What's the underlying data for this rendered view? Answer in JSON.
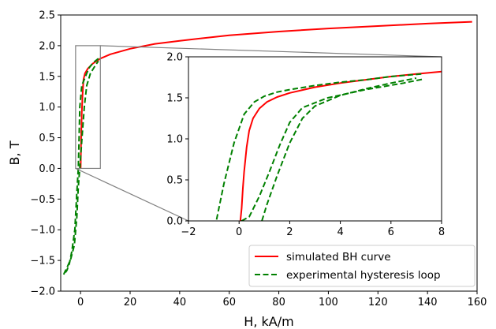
{
  "chart_data": [
    {
      "id": "main",
      "type": "line",
      "xlabel": "H, kA/m",
      "ylabel": "B, T",
      "xlim": [
        -8,
        160
      ],
      "ylim": [
        -2.0,
        2.5
      ],
      "xticks": [
        0,
        20,
        40,
        60,
        80,
        100,
        120,
        140,
        160
      ],
      "yticks": [
        -2.0,
        -1.5,
        -1.0,
        -0.5,
        0.0,
        0.5,
        1.0,
        1.5,
        2.0,
        2.5
      ],
      "grid": false,
      "legend_position": "lower-right",
      "series": [
        {
          "name": "simulated BH curve",
          "color": "#ff0000",
          "dash": "solid",
          "x": [
            0.05,
            0.25,
            0.5,
            0.8,
            1.2,
            1.8,
            3,
            5,
            8,
            12,
            20,
            30,
            40,
            60,
            80,
            100,
            120,
            140,
            158
          ],
          "y": [
            0.0,
            0.5,
            0.9,
            1.2,
            1.45,
            1.55,
            1.63,
            1.71,
            1.79,
            1.86,
            1.95,
            2.03,
            2.08,
            2.17,
            2.23,
            2.28,
            2.32,
            2.36,
            2.39
          ]
        },
        {
          "name": "experimental hysteresis loop",
          "color": "#008000",
          "dash": "dashed",
          "x": [
            7.2,
            5.0,
            3.5,
            2.5,
            1.5,
            0.5,
            -0.3,
            -0.6,
            -0.9,
            -1.5,
            -2.3,
            -3.5,
            -4.5,
            -5.5,
            -6.5,
            -6.8,
            -6.5,
            -5.5,
            -4.0,
            -2.5,
            -1.5,
            -0.9,
            -0.3,
            0.6,
            1.5,
            2.5,
            4.0,
            6.0,
            7.2
          ],
          "y": [
            1.79,
            1.72,
            1.64,
            1.55,
            1.45,
            1.35,
            1.0,
            0.5,
            0.0,
            -0.4,
            -1.0,
            -1.35,
            -1.55,
            -1.66,
            -1.72,
            -1.73,
            -1.7,
            -1.62,
            -1.48,
            -1.25,
            -0.8,
            -0.3,
            0.0,
            0.5,
            1.0,
            1.35,
            1.55,
            1.68,
            1.75
          ]
        }
      ]
    },
    {
      "id": "inset",
      "type": "line",
      "xlabel": "",
      "ylabel": "",
      "xlim": [
        -2,
        8
      ],
      "ylim": [
        0.0,
        2.0
      ],
      "xticks": [
        -2,
        0,
        2,
        4,
        6,
        8
      ],
      "yticks": [
        0.0,
        0.5,
        1.0,
        1.5,
        2.0
      ],
      "grid": false,
      "series": [
        {
          "name": "",
          "color": "#ff0000",
          "dash": "solid",
          "x": [
            0.05,
            0.1,
            0.15,
            0.2,
            0.3,
            0.4,
            0.55,
            0.8,
            1.1,
            1.5,
            2.0,
            3.0,
            4.0,
            5.0,
            6.0,
            7.0,
            8.0
          ],
          "y": [
            0.0,
            0.15,
            0.4,
            0.6,
            0.9,
            1.1,
            1.25,
            1.37,
            1.45,
            1.51,
            1.56,
            1.63,
            1.68,
            1.72,
            1.76,
            1.79,
            1.82
          ]
        },
        {
          "name": "",
          "color": "#008000",
          "dash": "dashed",
          "x": [
            7.2,
            6.0,
            5.0,
            4.0,
            3.0,
            2.0,
            1.5,
            1.0,
            0.6,
            0.2,
            -0.2,
            -0.6,
            -0.9
          ],
          "y": [
            1.79,
            1.76,
            1.72,
            1.69,
            1.65,
            1.6,
            1.57,
            1.52,
            1.45,
            1.3,
            0.95,
            0.45,
            0.0
          ]
        },
        {
          "name": "",
          "color": "#008000",
          "dash": "dashed",
          "x": [
            0.9,
            1.1,
            1.5,
            2.0,
            2.5,
            3.0,
            4.0,
            5.0,
            6.0,
            7.0
          ],
          "y": [
            0.0,
            0.2,
            0.55,
            0.95,
            1.25,
            1.4,
            1.53,
            1.61,
            1.68,
            1.74
          ]
        },
        {
          "name": "",
          "color": "#008000",
          "dash": "dashed",
          "x": [
            0.1,
            0.4,
            0.8,
            1.2,
            1.6,
            2.0,
            2.5,
            3.5,
            5.0,
            6.5,
            7.3
          ],
          "y": [
            0.0,
            0.05,
            0.3,
            0.6,
            0.92,
            1.2,
            1.38,
            1.5,
            1.6,
            1.68,
            1.73
          ]
        }
      ]
    }
  ],
  "zoom_box": {
    "x_range": [
      -2,
      8
    ],
    "y_range": [
      0.0,
      2.0
    ]
  }
}
